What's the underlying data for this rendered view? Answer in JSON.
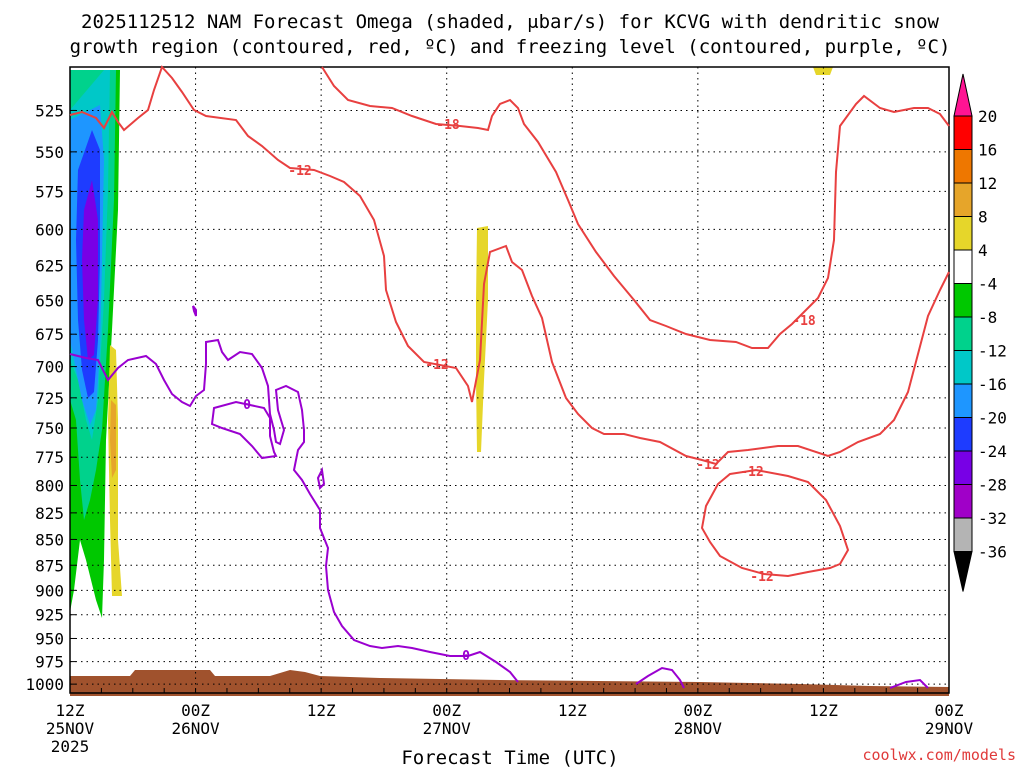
{
  "chart_data": {
    "type": "heatmap",
    "title_line1": "2025112512 NAM Forecast Omega (shaded, μbar/s) for KCVG with dendritic snow",
    "title_line2": "growth region (contoured, red, ºC) and freezing level (contoured, purple, ºC)",
    "xlabel": "Forecast Time (UTC)",
    "credit": "coolwx.com/models",
    "x_ticks": [
      {
        "hour": 0,
        "l1": "12Z",
        "l2": "25NOV",
        "l3": "2025"
      },
      {
        "hour": 12,
        "l1": "00Z",
        "l2": "26NOV",
        "l3": ""
      },
      {
        "hour": 24,
        "l1": "12Z",
        "l2": "",
        "l3": ""
      },
      {
        "hour": 36,
        "l1": "00Z",
        "l2": "27NOV",
        "l3": ""
      },
      {
        "hour": 48,
        "l1": "12Z",
        "l2": "",
        "l3": ""
      },
      {
        "hour": 60,
        "l1": "00Z",
        "l2": "28NOV",
        "l3": ""
      },
      {
        "hour": 72,
        "l1": "12Z",
        "l2": "",
        "l3": ""
      },
      {
        "hour": 84,
        "l1": "00Z",
        "l2": "29NOV",
        "l3": ""
      }
    ],
    "x_range_hours": [
      0,
      84
    ],
    "y_range_mb": [
      500,
      1010
    ],
    "y_ticks": [
      525,
      550,
      575,
      600,
      625,
      650,
      675,
      700,
      725,
      750,
      775,
      800,
      825,
      850,
      875,
      900,
      925,
      950,
      975,
      1000
    ],
    "colorbar": {
      "labels": [
        "20",
        "16",
        "12",
        "8",
        "4",
        "-4",
        "-8",
        "-12",
        "-16",
        "-20",
        "-24",
        "-28",
        "-32",
        "-36"
      ],
      "colors": [
        "#ff0000",
        "#ee7700",
        "#e6a52a",
        "#e6d62a",
        "#ffffff",
        "#00c800",
        "#00d28c",
        "#00c8c8",
        "#1e96ff",
        "#1e3cff",
        "#7800e6",
        "#a000c8",
        "#b4b4b4"
      ],
      "top_arrow_color": "#ff1493",
      "bottom_arrow_color": "#000000"
    },
    "series": [
      {
        "name": "dendritic growth -12 C",
        "color": "#e84040",
        "labels": [
          "-12",
          "-12",
          "-12",
          "-12",
          "-12"
        ]
      },
      {
        "name": "dendritic growth -18 C",
        "color": "#e84040",
        "labels": [
          "-18",
          "-18"
        ]
      },
      {
        "name": "freezing level 0 C",
        "color": "#9a00d0",
        "labels": [
          "0",
          "0"
        ]
      }
    ]
  }
}
